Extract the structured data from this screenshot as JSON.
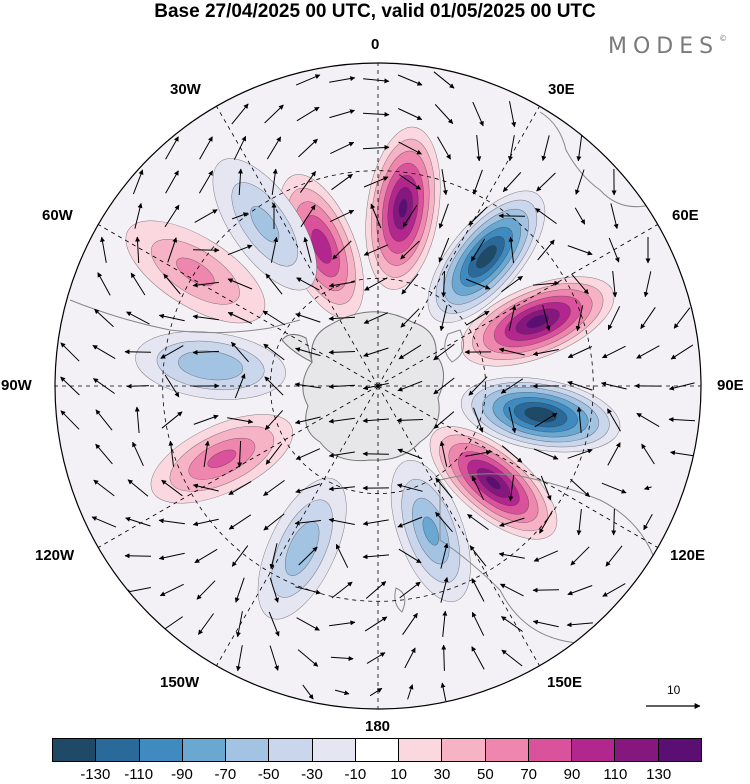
{
  "title": "Base 27/04/2025 00 UTC, valid 01/05/2025 00 UTC",
  "brand": "MODES",
  "brand_mark": "©",
  "longitude_labels": {
    "lon_0": "0",
    "lon_30e": "30E",
    "lon_60e": "60E",
    "lon_90e": "90E",
    "lon_120e": "120E",
    "lon_150e": "150E",
    "lon_180": "180",
    "lon_150w": "150W",
    "lon_120w": "120W",
    "lon_90w": "90W",
    "lon_60w": "60W",
    "lon_30w": "30W"
  },
  "vector_reference": "10",
  "colorbar": {
    "colors": [
      "#1e4a68",
      "#2a6a9a",
      "#3f8bbf",
      "#6aa8d2",
      "#a3c3e3",
      "#cad6ec",
      "#e6e6f3",
      "#ffffff",
      "#fbd7df",
      "#f6b3c5",
      "#ee86ad",
      "#d9529b",
      "#b2278e",
      "#86177f",
      "#5b0f73"
    ],
    "labels": [
      "-130",
      "-110",
      "-90",
      "-70",
      "-50",
      "-30",
      "-10",
      "10",
      "30",
      "50",
      "70",
      "90",
      "110",
      "130"
    ]
  },
  "anomaly_centers": [
    {
      "lon": 8,
      "lat": -40,
      "value": 125
    },
    {
      "lon": -22,
      "lat": -48,
      "value": 95
    },
    {
      "lon": 40,
      "lat": -43,
      "value": -135
    },
    {
      "lon": 68,
      "lat": -42,
      "value": 130
    },
    {
      "lon": 100,
      "lat": -44,
      "value": -140
    },
    {
      "lon": 130,
      "lat": -48,
      "value": 125
    },
    {
      "lon": 160,
      "lat": -47,
      "value": -65
    },
    {
      "lon": -155,
      "lat": -40,
      "value": -55
    },
    {
      "lon": -115,
      "lat": -42,
      "value": 65
    },
    {
      "lon": -83,
      "lat": -43,
      "value": -60
    },
    {
      "lon": -58,
      "lat": -30,
      "value": 45
    },
    {
      "lon": -35,
      "lat": -35,
      "value": -45
    }
  ]
}
